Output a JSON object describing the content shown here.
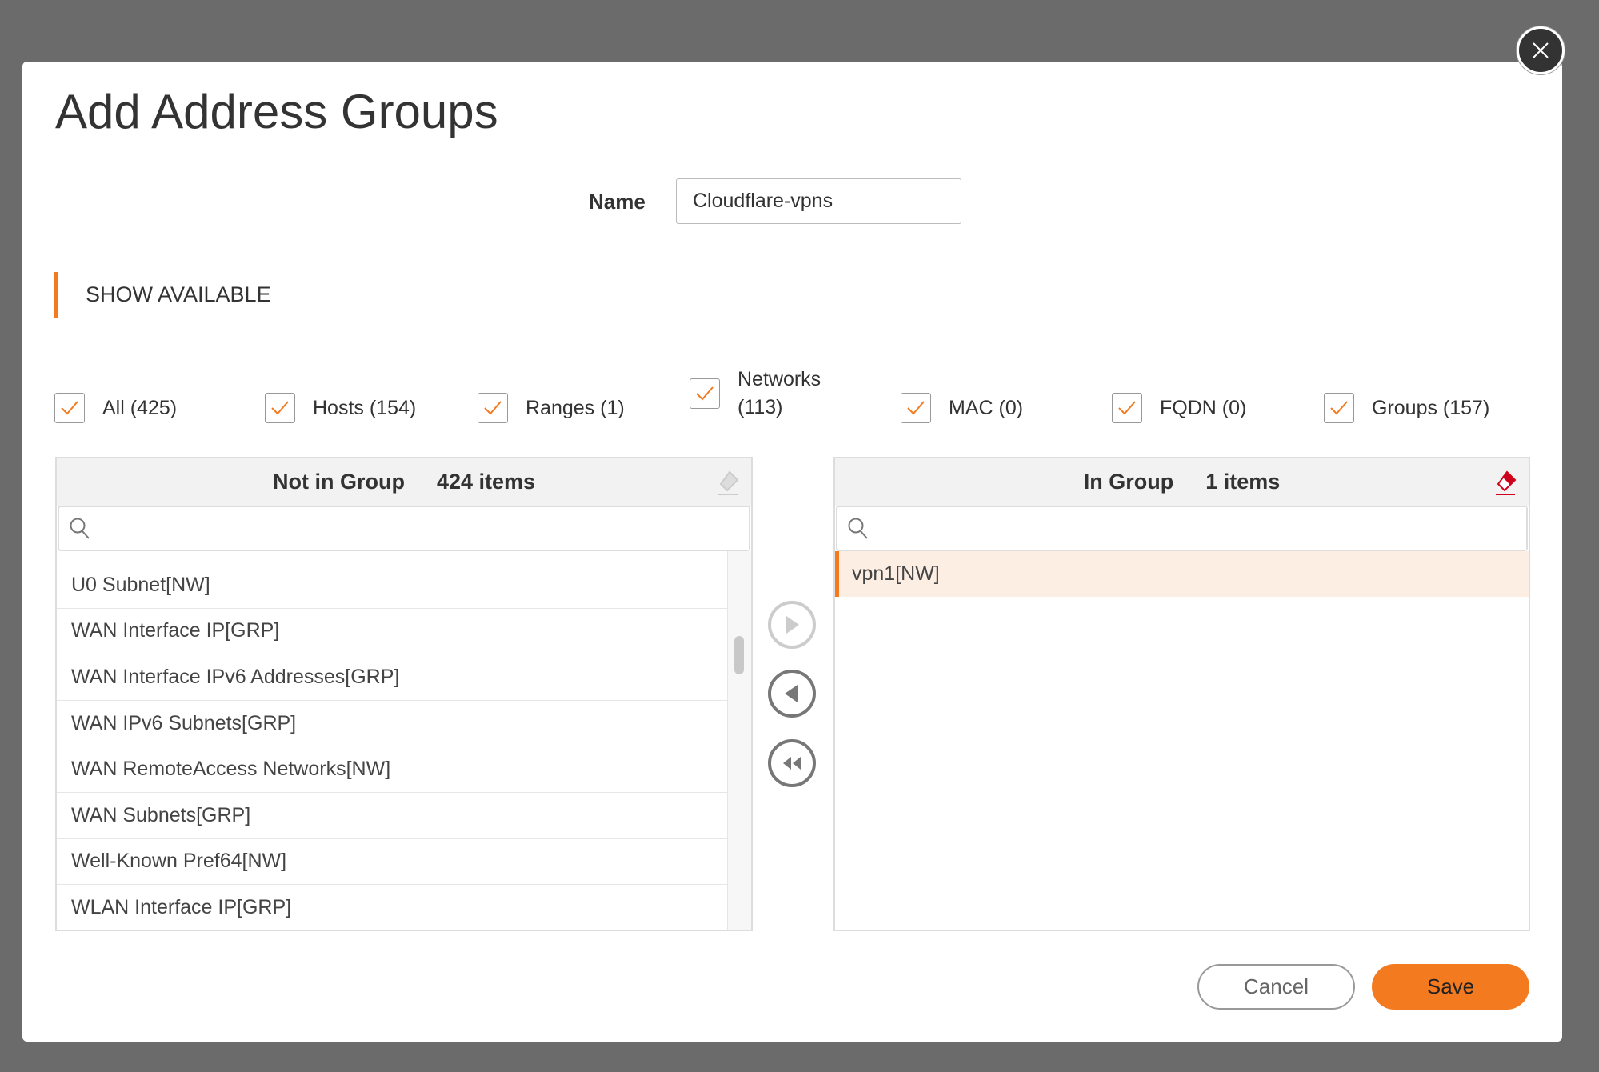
{
  "dialog": {
    "title": "Add Address Groups"
  },
  "name_field": {
    "label": "Name",
    "value": "Cloudflare-vpns"
  },
  "section": {
    "label": "SHOW AVAILABLE"
  },
  "filters": [
    {
      "label": "All (425)",
      "checked": true
    },
    {
      "label": "Hosts (154)",
      "checked": true
    },
    {
      "label": "Ranges (1)",
      "checked": true
    },
    {
      "label": "Networks",
      "label2": "(113)",
      "checked": true
    },
    {
      "label": "MAC (0)",
      "checked": true
    },
    {
      "label": "FQDN (0)",
      "checked": true
    },
    {
      "label": "Groups (157)",
      "checked": true
    }
  ],
  "left_panel": {
    "title": "Not in Group",
    "count": "424 items",
    "search_placeholder": "",
    "items": [
      "U0 Subnet[NW]",
      "WAN Interface IP[GRP]",
      "WAN Interface IPv6 Addresses[GRP]",
      "WAN IPv6 Subnets[GRP]",
      "WAN RemoteAccess Networks[NW]",
      "WAN Subnets[GRP]",
      "Well-Known Pref64[NW]",
      "WLAN Interface IP[GRP]"
    ]
  },
  "right_panel": {
    "title": "In Group",
    "count": "1 items",
    "search_placeholder": "",
    "items": [
      "vpn1[NW]"
    ]
  },
  "footer": {
    "cancel": "Cancel",
    "save": "Save"
  },
  "colors": {
    "accent": "#f47a20",
    "eraser_active": "#d0021b"
  }
}
